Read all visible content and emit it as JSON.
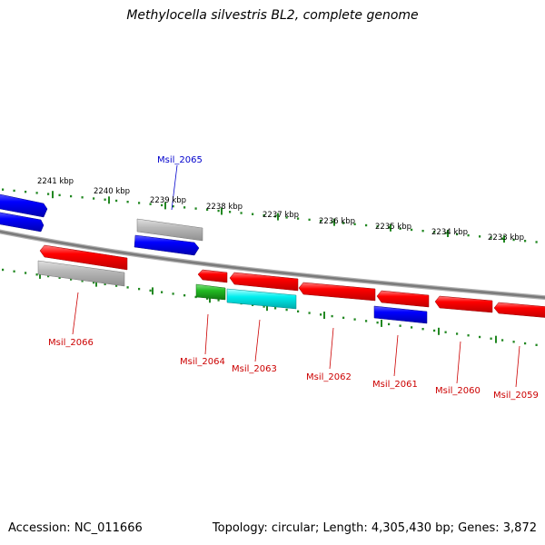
{
  "title": "Methylocella silvestris BL2, complete genome",
  "footer": {
    "accession": "Accession: NC_011666",
    "summary": "Topology: circular; Length: 4,305,430 bp; Genes: 3,872"
  },
  "colors": {
    "forward_gene": "#ff0000",
    "reverse_gene": "#0000ff",
    "pseudo_gene": "#b4b4b4",
    "rna_gene": "#22bb22",
    "misc_feature": "#00e5ee",
    "ticks": "#228822",
    "backbone": "#888888"
  },
  "ticks": [
    {
      "label": "2241 kbp"
    },
    {
      "label": "2240 kbp"
    },
    {
      "label": "2239 kbp"
    },
    {
      "label": "2238 kbp"
    },
    {
      "label": "2237 kbp"
    },
    {
      "label": "2236 kbp"
    },
    {
      "label": "2235 kbp"
    },
    {
      "label": "2234 kbp"
    },
    {
      "label": "2233 kbp"
    }
  ],
  "gene_labels": [
    {
      "name": "Msil_2065",
      "color": "#0000cc"
    },
    {
      "name": "Msil_2066",
      "color": "#cc0000"
    },
    {
      "name": "Msil_2064",
      "color": "#cc0000"
    },
    {
      "name": "Msil_2063",
      "color": "#cc0000"
    },
    {
      "name": "Msil_2062",
      "color": "#cc0000"
    },
    {
      "name": "Msil_2061",
      "color": "#cc0000"
    },
    {
      "name": "Msil_2060",
      "color": "#cc0000"
    },
    {
      "name": "Msil_2059",
      "color": "#cc0000"
    }
  ]
}
